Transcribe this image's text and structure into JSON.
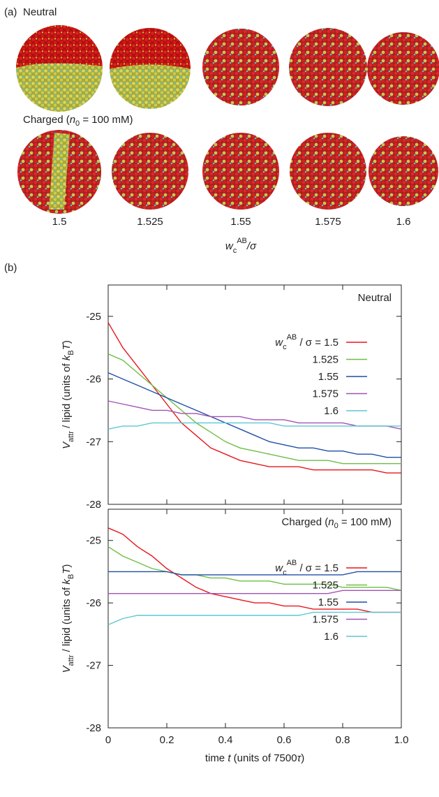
{
  "panel_a": {
    "label": "(a)",
    "row_1_label": "Neutral",
    "row_2_label": [
      "Charged (",
      "n",
      "0",
      " = 100 mM)"
    ],
    "x_labels": [
      "1.5",
      "1.525",
      "1.55",
      "1.575",
      "1.6"
    ],
    "x_label": [
      "w",
      "c",
      "AB",
      "/σ"
    ]
  },
  "panel_b": {
    "label": "(b)"
  },
  "chart_data": [
    {
      "type": "line",
      "annotation": "Neutral",
      "ylabel": [
        "V",
        "attr",
        " / lipid (units of ",
        "k",
        "B",
        "T",
        ")"
      ],
      "legend_title": [
        "w",
        "c",
        "AB",
        " / σ = "
      ],
      "legend": "right",
      "x": [
        0,
        0.05,
        0.1,
        0.15,
        0.2,
        0.25,
        0.3,
        0.35,
        0.4,
        0.45,
        0.5,
        0.55,
        0.6,
        0.65,
        0.7,
        0.75,
        0.8,
        0.85,
        0.9,
        0.95,
        1
      ],
      "xlim": [
        0,
        1
      ],
      "xticks": [
        0,
        0.2,
        0.4,
        0.6,
        0.8,
        1
      ],
      "ylim": [
        -28,
        -24.5
      ],
      "yticks": [
        -28,
        -27,
        -26,
        -25
      ],
      "series": [
        {
          "name": "1.5",
          "color": "#e8161b",
          "values": [
            -25.1,
            -25.5,
            -25.8,
            -26.1,
            -26.4,
            -26.7,
            -26.9,
            -27.1,
            -27.2,
            -27.3,
            -27.35,
            -27.4,
            -27.4,
            -27.4,
            -27.45,
            -27.45,
            -27.45,
            -27.45,
            -27.45,
            -27.5,
            -27.5
          ]
        },
        {
          "name": "1.525",
          "color": "#6dbe45",
          "values": [
            -25.6,
            -25.7,
            -25.9,
            -26.1,
            -26.3,
            -26.5,
            -26.7,
            -26.85,
            -27.0,
            -27.1,
            -27.15,
            -27.2,
            -27.25,
            -27.3,
            -27.3,
            -27.3,
            -27.35,
            -27.35,
            -27.35,
            -27.35,
            -27.35
          ]
        },
        {
          "name": "1.55",
          "color": "#1f4fa8",
          "values": [
            -25.9,
            -26.0,
            -26.1,
            -26.2,
            -26.3,
            -26.4,
            -26.5,
            -26.6,
            -26.7,
            -26.8,
            -26.9,
            -27.0,
            -27.05,
            -27.1,
            -27.1,
            -27.15,
            -27.15,
            -27.2,
            -27.2,
            -27.25,
            -27.25
          ]
        },
        {
          "name": "1.575",
          "color": "#a252b4",
          "values": [
            -26.35,
            -26.4,
            -26.45,
            -26.5,
            -26.5,
            -26.55,
            -26.55,
            -26.6,
            -26.6,
            -26.6,
            -26.65,
            -26.65,
            -26.65,
            -26.7,
            -26.7,
            -26.7,
            -26.7,
            -26.75,
            -26.75,
            -26.75,
            -26.8
          ]
        },
        {
          "name": "1.6",
          "color": "#5bc8d4",
          "values": [
            -26.8,
            -26.75,
            -26.75,
            -26.7,
            -26.7,
            -26.7,
            -26.7,
            -26.7,
            -26.7,
            -26.7,
            -26.7,
            -26.7,
            -26.75,
            -26.75,
            -26.75,
            -26.75,
            -26.75,
            -26.75,
            -26.75,
            -26.75,
            -26.75
          ]
        }
      ]
    },
    {
      "type": "line",
      "annotation": [
        "Charged (",
        "n",
        "0",
        " = 100 mM)"
      ],
      "ylabel": [
        "V",
        "attr",
        " / lipid (units of ",
        "k",
        "B",
        "T",
        ")"
      ],
      "xlabel": [
        "time ",
        "t",
        " (units of 7500",
        "τ",
        ")"
      ],
      "legend_title": [
        "w",
        "c",
        "AB",
        " / σ = "
      ],
      "legend": "lower right",
      "x": [
        0,
        0.05,
        0.1,
        0.15,
        0.2,
        0.25,
        0.3,
        0.35,
        0.4,
        0.45,
        0.5,
        0.55,
        0.6,
        0.65,
        0.7,
        0.75,
        0.8,
        0.85,
        0.9,
        0.95,
        1
      ],
      "xlim": [
        0,
        1
      ],
      "xticks": [
        0,
        0.2,
        0.4,
        0.6,
        0.8,
        {
          "value": 1,
          "label": "1.0"
        }
      ],
      "ylim": [
        -28,
        -24.5
      ],
      "yticks": [
        -28,
        -27,
        -26,
        -25
      ],
      "series": [
        {
          "name": "1.5",
          "color": "#e8161b",
          "values": [
            -24.8,
            -24.9,
            -25.1,
            -25.25,
            -25.45,
            -25.6,
            -25.75,
            -25.85,
            -25.9,
            -25.95,
            -26.0,
            -26.0,
            -26.05,
            -26.05,
            -26.1,
            -26.1,
            -26.1,
            -26.1,
            -26.15,
            -26.15,
            -26.15
          ]
        },
        {
          "name": "1.525",
          "color": "#6dbe45",
          "values": [
            -25.1,
            -25.25,
            -25.35,
            -25.45,
            -25.5,
            -25.55,
            -25.55,
            -25.6,
            -25.6,
            -25.65,
            -25.65,
            -25.65,
            -25.7,
            -25.7,
            -25.7,
            -25.7,
            -25.75,
            -25.75,
            -25.75,
            -25.75,
            -25.8
          ]
        },
        {
          "name": "1.55",
          "color": "#1f4fa8",
          "values": [
            -25.5,
            -25.5,
            -25.5,
            -25.5,
            -25.5,
            -25.55,
            -25.55,
            -25.55,
            -25.55,
            -25.55,
            -25.55,
            -25.55,
            -25.55,
            -25.55,
            -25.55,
            -25.55,
            -25.55,
            -25.5,
            -25.5,
            -25.5,
            -25.5
          ]
        },
        {
          "name": "1.575",
          "color": "#a252b4",
          "values": [
            -25.85,
            -25.85,
            -25.85,
            -25.85,
            -25.85,
            -25.85,
            -25.85,
            -25.85,
            -25.85,
            -25.85,
            -25.85,
            -25.85,
            -25.85,
            -25.85,
            -25.85,
            -25.85,
            -25.8,
            -25.8,
            -25.8,
            -25.8,
            -25.8
          ]
        },
        {
          "name": "1.6",
          "color": "#5bc8d4",
          "values": [
            -26.35,
            -26.25,
            -26.2,
            -26.2,
            -26.2,
            -26.2,
            -26.2,
            -26.2,
            -26.2,
            -26.2,
            -26.2,
            -26.2,
            -26.2,
            -26.2,
            -26.15,
            -26.15,
            -26.15,
            -26.15,
            -26.15,
            -26.15,
            -26.15
          ]
        }
      ]
    }
  ]
}
